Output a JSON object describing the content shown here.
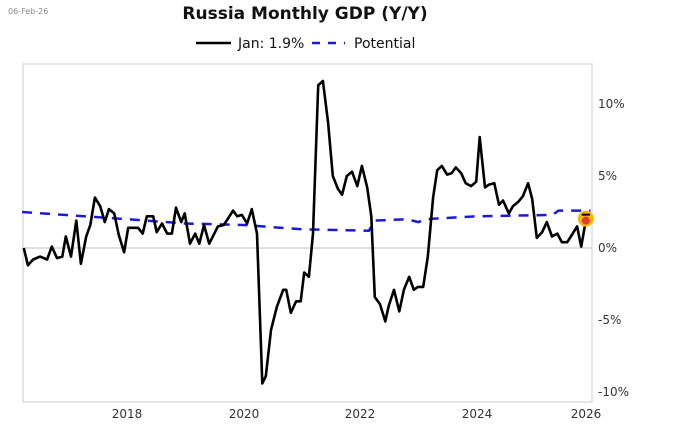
{
  "date_label": "06-Feb-26",
  "chart_data": {
    "type": "line",
    "title": "Russia Monthly GDP (Y/Y)",
    "xlabel": "",
    "ylabel": "",
    "xlim": [
      2016.2,
      2026.1
    ],
    "ylim": [
      -10.6,
      12.7
    ],
    "x_ticks": [
      2018,
      2020,
      2022,
      2024,
      2026
    ],
    "x_tick_labels": [
      "2018",
      "2020",
      "2022",
      "2024",
      "2026"
    ],
    "y_ticks": [
      10,
      5,
      0,
      -5,
      -10
    ],
    "y_tick_labels": [
      "10%",
      "5%",
      "0%",
      "-5%",
      "-10%"
    ],
    "y_axis_side": "right",
    "grid": false,
    "zero_line": true,
    "legend_placement": "top-center",
    "series": [
      {
        "name": "Jan: 1.9%",
        "color": "#000000",
        "style": "solid",
        "points": [
          [
            2016.23,
            0.0
          ],
          [
            2016.3,
            -1.2
          ],
          [
            2016.39,
            -0.8
          ],
          [
            2016.51,
            -0.6
          ],
          [
            2016.63,
            -0.8
          ],
          [
            2016.71,
            0.1
          ],
          [
            2016.8,
            -0.7
          ],
          [
            2016.89,
            -0.6
          ],
          [
            2016.95,
            0.8
          ],
          [
            2017.04,
            -0.6
          ],
          [
            2017.13,
            1.9
          ],
          [
            2017.21,
            -1.1
          ],
          [
            2017.3,
            0.8
          ],
          [
            2017.37,
            1.6
          ],
          [
            2017.45,
            3.5
          ],
          [
            2017.54,
            2.9
          ],
          [
            2017.62,
            1.8
          ],
          [
            2017.69,
            2.7
          ],
          [
            2017.78,
            2.4
          ],
          [
            2017.86,
            0.9
          ],
          [
            2017.95,
            -0.3
          ],
          [
            2018.02,
            1.4
          ],
          [
            2018.19,
            1.4
          ],
          [
            2018.27,
            1.0
          ],
          [
            2018.34,
            2.2
          ],
          [
            2018.45,
            2.2
          ],
          [
            2018.51,
            1.1
          ],
          [
            2018.6,
            1.7
          ],
          [
            2018.69,
            1.0
          ],
          [
            2018.77,
            1.0
          ],
          [
            2018.84,
            2.8
          ],
          [
            2018.93,
            1.8
          ],
          [
            2018.99,
            2.4
          ],
          [
            2019.08,
            0.3
          ],
          [
            2019.17,
            1.0
          ],
          [
            2019.24,
            0.3
          ],
          [
            2019.32,
            1.6
          ],
          [
            2019.41,
            0.3
          ],
          [
            2019.56,
            1.5
          ],
          [
            2019.66,
            1.6
          ],
          [
            2019.82,
            2.6
          ],
          [
            2019.89,
            2.2
          ],
          [
            2019.97,
            2.3
          ],
          [
            2020.06,
            1.7
          ],
          [
            2020.14,
            2.7
          ],
          [
            2020.23,
            1.0
          ],
          [
            2020.32,
            -9.4
          ],
          [
            2020.38,
            -8.9
          ],
          [
            2020.47,
            -5.7
          ],
          [
            2020.57,
            -4.1
          ],
          [
            2020.68,
            -2.9
          ],
          [
            2020.73,
            -2.9
          ],
          [
            2020.81,
            -4.5
          ],
          [
            2020.9,
            -3.7
          ],
          [
            2020.98,
            -3.7
          ],
          [
            2021.04,
            -1.7
          ],
          [
            2021.12,
            -2.0
          ],
          [
            2021.19,
            1.0
          ],
          [
            2021.28,
            11.3
          ],
          [
            2021.36,
            11.6
          ],
          [
            2021.45,
            8.7
          ],
          [
            2021.53,
            5.0
          ],
          [
            2021.62,
            4.1
          ],
          [
            2021.69,
            3.7
          ],
          [
            2021.77,
            5.0
          ],
          [
            2021.86,
            5.3
          ],
          [
            2021.95,
            4.3
          ],
          [
            2022.03,
            5.7
          ],
          [
            2022.12,
            4.2
          ],
          [
            2022.19,
            2.2
          ],
          [
            2022.25,
            -3.4
          ],
          [
            2022.34,
            -3.9
          ],
          [
            2022.43,
            -5.1
          ],
          [
            2022.49,
            -4.0
          ],
          [
            2022.58,
            -2.9
          ],
          [
            2022.67,
            -4.4
          ],
          [
            2022.75,
            -2.9
          ],
          [
            2022.84,
            -2.0
          ],
          [
            2022.92,
            -2.9
          ],
          [
            2022.99,
            -2.7
          ],
          [
            2023.08,
            -2.7
          ],
          [
            2023.16,
            -0.6
          ],
          [
            2023.25,
            3.5
          ],
          [
            2023.32,
            5.4
          ],
          [
            2023.4,
            5.7
          ],
          [
            2023.49,
            5.1
          ],
          [
            2023.57,
            5.2
          ],
          [
            2023.64,
            5.6
          ],
          [
            2023.73,
            5.2
          ],
          [
            2023.81,
            4.5
          ],
          [
            2023.9,
            4.3
          ],
          [
            2023.99,
            4.6
          ],
          [
            2024.05,
            7.7
          ],
          [
            2024.14,
            4.2
          ],
          [
            2024.21,
            4.4
          ],
          [
            2024.3,
            4.5
          ],
          [
            2024.38,
            3.0
          ],
          [
            2024.45,
            3.3
          ],
          [
            2024.55,
            2.4
          ],
          [
            2024.62,
            2.9
          ],
          [
            2024.71,
            3.2
          ],
          [
            2024.79,
            3.6
          ],
          [
            2024.88,
            4.5
          ],
          [
            2024.95,
            3.4
          ],
          [
            2025.03,
            0.7
          ],
          [
            2025.12,
            1.1
          ],
          [
            2025.2,
            1.8
          ],
          [
            2025.29,
            0.8
          ],
          [
            2025.38,
            1.0
          ],
          [
            2025.46,
            0.4
          ],
          [
            2025.55,
            0.4
          ],
          [
            2025.63,
            0.9
          ],
          [
            2025.72,
            1.5
          ],
          [
            2025.79,
            0.1
          ],
          [
            2025.87,
            1.9
          ]
        ]
      },
      {
        "name": "Potential",
        "color": "#1a1adb",
        "style": "dashed",
        "points": [
          [
            2016.2,
            2.5
          ],
          [
            2018.0,
            2.0
          ],
          [
            2019.0,
            1.7
          ],
          [
            2020.0,
            1.6
          ],
          [
            2021.0,
            1.3
          ],
          [
            2022.15,
            1.2
          ],
          [
            2022.25,
            1.9
          ],
          [
            2022.8,
            2.0
          ],
          [
            2023.0,
            1.8
          ],
          [
            2023.1,
            2.0
          ],
          [
            2024.0,
            2.2
          ],
          [
            2025.3,
            2.3
          ],
          [
            2025.4,
            2.6
          ],
          [
            2025.95,
            2.6
          ]
        ]
      }
    ],
    "highlight": {
      "x": 2025.87,
      "y": 1.9,
      "color": "#e53935",
      "halo_color": "#f5b800"
    }
  }
}
